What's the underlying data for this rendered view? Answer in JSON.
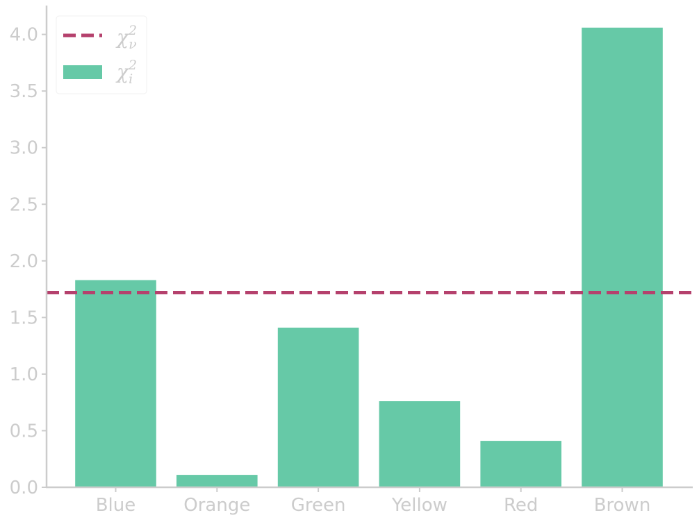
{
  "chart_data": {
    "type": "bar",
    "title": "",
    "xlabel": "",
    "ylabel": "",
    "categories": [
      "Blue",
      "Orange",
      "Green",
      "Yellow",
      "Red",
      "Brown"
    ],
    "series": [
      {
        "name": "χ_i^2",
        "values": [
          1.83,
          0.11,
          1.41,
          0.76,
          0.41,
          4.06
        ]
      }
    ],
    "reference_line": {
      "name": "χ_ν^2",
      "value": 1.72,
      "style": "dashed"
    },
    "ylim": [
      0,
      4.25
    ],
    "yticks": [
      0.0,
      0.5,
      1.0,
      1.5,
      2.0,
      2.5,
      3.0,
      3.5,
      4.0
    ],
    "ytick_labels": [
      "0.0",
      "0.5",
      "1.0",
      "1.5",
      "2.0",
      "2.5",
      "3.0",
      "3.5",
      "4.0"
    ],
    "grid": false,
    "legend": {
      "position": "top-left",
      "entries": [
        {
          "symbol": "χ",
          "subscript": "ν",
          "superscript": "2",
          "kind": "dashed-line"
        },
        {
          "symbol": "χ",
          "subscript": "i",
          "superscript": "2",
          "kind": "bar"
        }
      ]
    },
    "colors": {
      "bar": "#66c9a7",
      "line": "#b5416d",
      "axis": "#cccccc",
      "text": "#cccccc"
    }
  }
}
